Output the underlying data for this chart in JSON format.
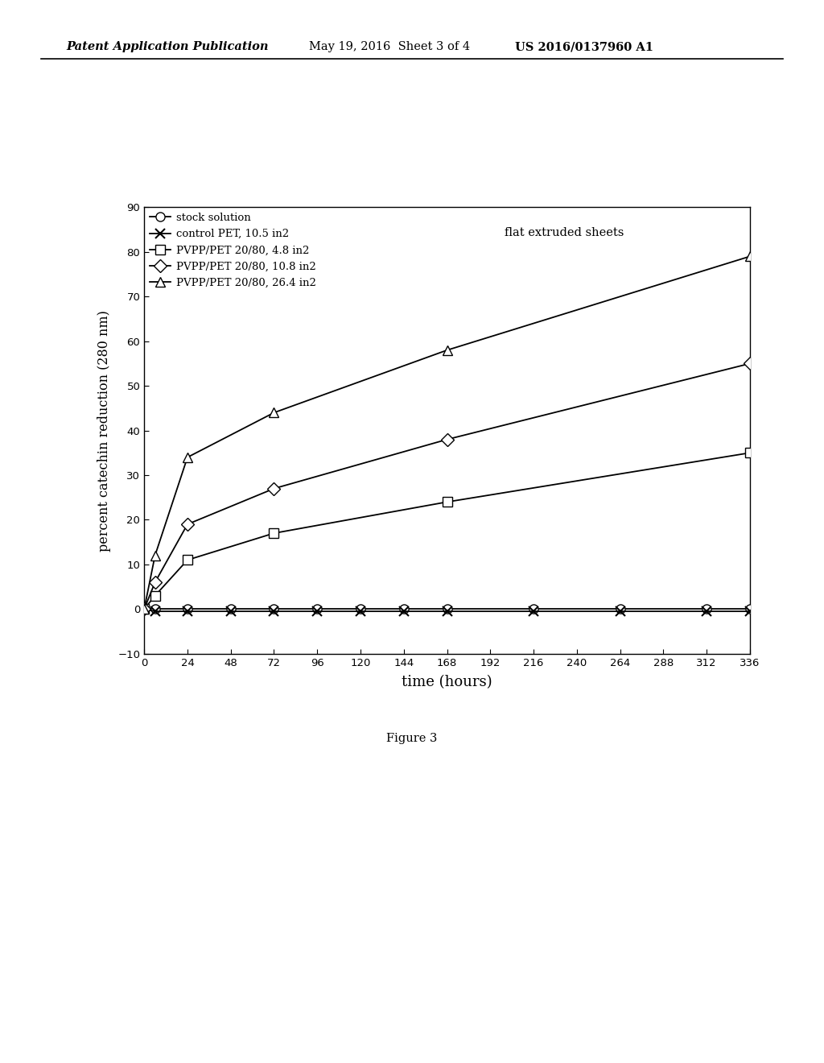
{
  "title": "",
  "xlabel": "time (hours)",
  "ylabel": "percent catechin reduction (280 nm)",
  "annotation": "flat extruded sheets",
  "ylim": [
    -10,
    90
  ],
  "xlim": [
    0,
    336
  ],
  "xticks": [
    0,
    24,
    48,
    72,
    96,
    120,
    144,
    168,
    192,
    216,
    240,
    264,
    288,
    312,
    336
  ],
  "yticks": [
    -10,
    0,
    10,
    20,
    30,
    40,
    50,
    60,
    70,
    80,
    90
  ],
  "series": [
    {
      "label": "stock solution",
      "marker": "o",
      "x": [
        0,
        6,
        24,
        48,
        72,
        96,
        120,
        144,
        168,
        216,
        264,
        312,
        336
      ],
      "y": [
        0,
        0,
        0,
        0,
        0,
        0,
        0,
        0,
        0,
        0,
        0,
        0,
        0
      ],
      "color": "#000000"
    },
    {
      "label": "control PET, 10.5 in2",
      "marker": "x",
      "x": [
        0,
        6,
        24,
        48,
        72,
        96,
        120,
        144,
        168,
        216,
        264,
        312,
        336
      ],
      "y": [
        0,
        -0.5,
        -0.5,
        -0.5,
        -0.5,
        -0.5,
        -0.5,
        -0.5,
        -0.5,
        -0.5,
        -0.5,
        -0.5,
        -0.5
      ],
      "color": "#000000"
    },
    {
      "label": "PVPP/PET 20/80, 4.8 in2",
      "marker": "s",
      "x": [
        0,
        6,
        24,
        72,
        168,
        336
      ],
      "y": [
        0,
        3,
        11,
        17,
        24,
        35
      ],
      "color": "#000000"
    },
    {
      "label": "PVPP/PET 20/80, 10.8 in2",
      "marker": "D",
      "x": [
        0,
        6,
        24,
        72,
        168,
        336
      ],
      "y": [
        0,
        6,
        19,
        27,
        38,
        55
      ],
      "color": "#000000"
    },
    {
      "label": "PVPP/PET 20/80, 26.4 in2",
      "marker": "^",
      "x": [
        0,
        6,
        24,
        72,
        168,
        336
      ],
      "y": [
        0,
        12,
        34,
        44,
        58,
        79
      ],
      "color": "#000000"
    }
  ],
  "figure_label": "Figure 3",
  "header_left": "Patent Application Publication",
  "header_center": "May 19, 2016  Sheet 3 of 4",
  "header_right": "US 2016/0137960 A1"
}
